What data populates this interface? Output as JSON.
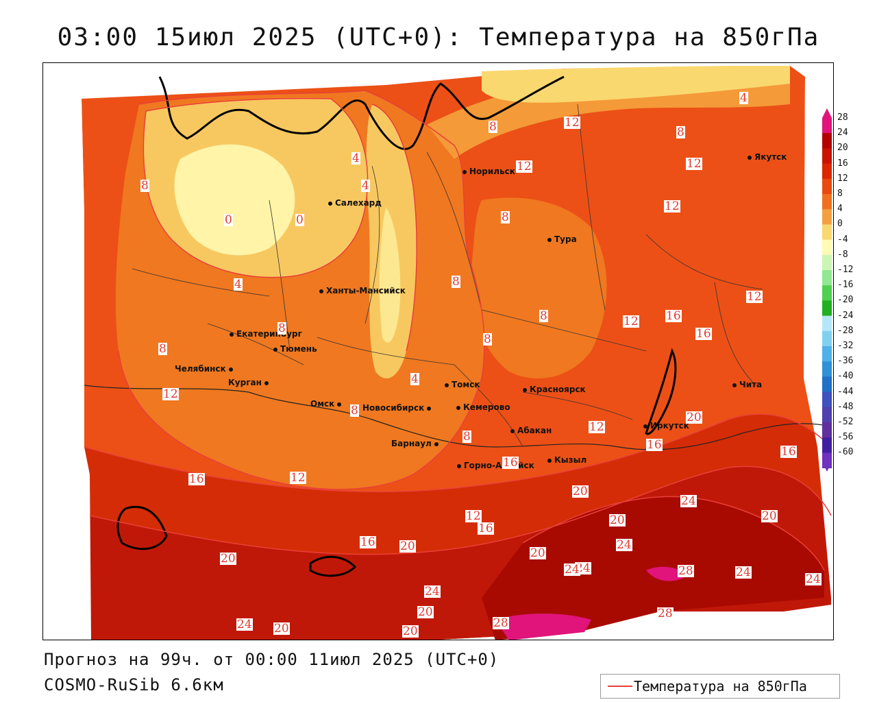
{
  "header": {
    "title": "03:00 15июл 2025 (UTC+0): Температура на 850гПа"
  },
  "footer": {
    "forecast": "Прогноз на 99ч. от 00:00 11июл 2025 (UTC+0)",
    "model": "COSMO-RuSib 6.6км"
  },
  "legend": {
    "label": "Температура на 850гПа",
    "line_color": "#e8403a"
  },
  "colorbar": {
    "ticks": [
      "28",
      "24",
      "20",
      "16",
      "12",
      "8",
      "4",
      "0",
      "-4",
      "-8",
      "-12",
      "-16",
      "-20",
      "-24",
      "-28",
      "-32",
      "-36",
      "-40",
      "-44",
      "-48",
      "-52",
      "-56",
      "-60"
    ],
    "colors": [
      "#e0147a",
      "#b40000",
      "#c81400",
      "#dc2800",
      "#e84a10",
      "#f07020",
      "#f4a040",
      "#fad870",
      "#fffab4",
      "#ccf5b4",
      "#90e890",
      "#50d050",
      "#20b020",
      "#b4e8f8",
      "#80d0f0",
      "#50b0e8",
      "#3090d8",
      "#2070c8",
      "#4050c0",
      "#5040b0",
      "#6030a0",
      "#4020a0",
      "#7030c0"
    ]
  },
  "cities": [
    {
      "name": "Норильск"
    },
    {
      "name": "Якутск"
    },
    {
      "name": "Салехард"
    },
    {
      "name": "Тура"
    },
    {
      "name": "Ханты-Мансийск"
    },
    {
      "name": "Екатеринбург"
    },
    {
      "name": "Тюмень"
    },
    {
      "name": "Челябинск"
    },
    {
      "name": "Курган"
    },
    {
      "name": "Омск"
    },
    {
      "name": "Новосибирск"
    },
    {
      "name": "Томск"
    },
    {
      "name": "Кемерово"
    },
    {
      "name": "Красноярск"
    },
    {
      "name": "Барнаул"
    },
    {
      "name": "Абакан"
    },
    {
      "name": "Горно-Алтайск"
    },
    {
      "name": "Кызыл"
    },
    {
      "name": "Иркутск"
    },
    {
      "name": "Чита"
    }
  ],
  "contour_labels": [
    "4",
    "8",
    "12",
    "8",
    "12",
    "12",
    "4",
    "4",
    "0",
    "0",
    "8",
    "8",
    "4",
    "8",
    "12",
    "8",
    "8",
    "12",
    "16",
    "16",
    "12",
    "8",
    "8",
    "4",
    "8",
    "12",
    "16",
    "8",
    "12",
    "20",
    "16",
    "16",
    "12",
    "16",
    "12",
    "20",
    "20",
    "24",
    "16",
    "16",
    "20",
    "20",
    "24",
    "20",
    "24",
    "24",
    "28",
    "24",
    "24",
    "20",
    "24",
    "20",
    "24",
    "20",
    "20",
    "28",
    "28"
  ]
}
